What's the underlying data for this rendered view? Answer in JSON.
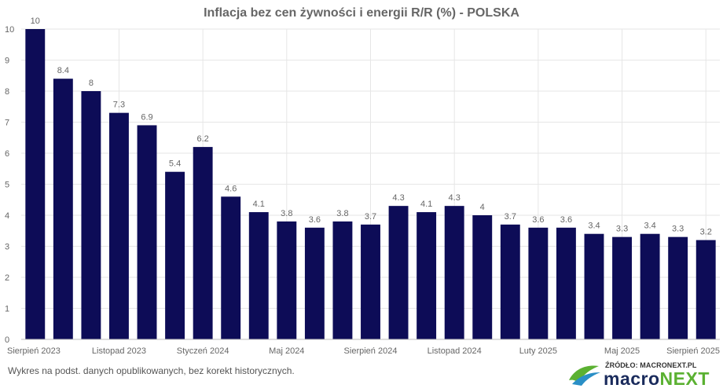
{
  "title": "Inflacja bez cen żywności i energii R/R (%) - POLSKA",
  "footnote": "Wykres na podst. danych opublikowanych, bez korekt historycznych.",
  "logo": {
    "source": "ŹRÓDŁO: MACRONEXT.PL",
    "word_part1": "macro",
    "word_part2": "NEXT",
    "icon": "leaf-swoosh-icon"
  },
  "colors": {
    "bar": "#0d0c57",
    "grid": "#e6e6e6",
    "text": "#666666",
    "brand_blue": "#1a2b5c",
    "brand_green": "#5bb132"
  },
  "chart_data": {
    "type": "bar",
    "title": "Inflacja bez cen żywności i energii R/R (%) - POLSKA",
    "categories": [
      "Sierpień 2023",
      "",
      "",
      "Listopad 2023",
      "",
      "",
      "Styczeń 2024",
      "",
      "",
      "Maj 2024",
      "",
      "",
      "Sierpień 2024",
      "",
      "",
      "Listopad 2024",
      "",
      "",
      "Luty 2025",
      "",
      "",
      "Maj 2025",
      "",
      "",
      "Sierpień 2025"
    ],
    "x_tick_labels": [
      "Sierpień 2023",
      "Listopad 2023",
      "Styczeń 2024",
      "Maj 2024",
      "Sierpień 2024",
      "Listopad 2024",
      "Luty 2025",
      "Maj 2025",
      "Sierpień 2025"
    ],
    "values": [
      10,
      8.4,
      8,
      7.3,
      6.9,
      5.4,
      6.2,
      4.6,
      4.1,
      3.8,
      3.6,
      3.8,
      3.7,
      4.3,
      4.1,
      4.3,
      4,
      3.7,
      3.6,
      3.6,
      3.4,
      3.3,
      3.4,
      3.3,
      3.2
    ],
    "data_labels": [
      "10",
      "8.4",
      "8",
      "7.3",
      "6.9",
      "5.4",
      "6.2",
      "4.6",
      "4.1",
      "3.8",
      "3.6",
      "3.8",
      "3.7",
      "4.3",
      "4.1",
      "4.3",
      "4",
      "3.7",
      "3.6",
      "3.6",
      "3.4",
      "3.3",
      "3.4",
      "3.3",
      "3.2"
    ],
    "ylim": [
      0,
      10
    ],
    "y_ticks": [
      "0",
      "1",
      "2",
      "3",
      "4",
      "5",
      "6",
      "7",
      "8",
      "9",
      "10"
    ],
    "xlabel": "",
    "ylabel": "",
    "grid": true,
    "legend": "none"
  }
}
